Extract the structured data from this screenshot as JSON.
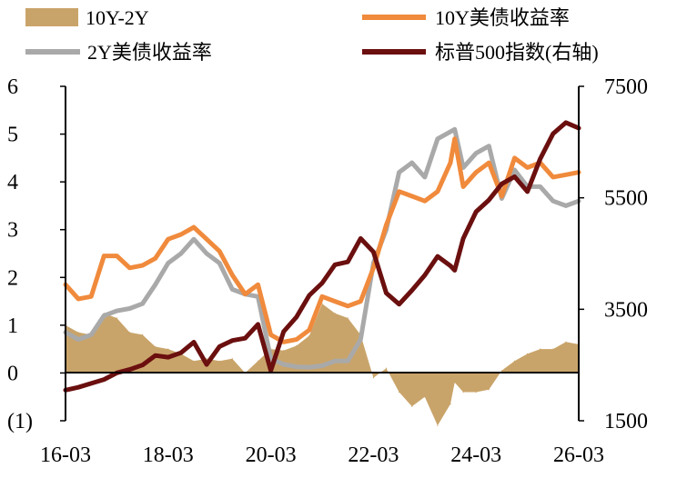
{
  "chart_data": {
    "type": "line",
    "title": "",
    "xlabel": "",
    "ylabel": "",
    "x_ticks": [
      "16-03",
      "18-03",
      "20-03",
      "22-03",
      "24-03",
      "26-03"
    ],
    "x_range": [
      "2016-03",
      "2026-03"
    ],
    "left_axis": {
      "ylim": [
        -1,
        6
      ],
      "ticks": [
        "(1)",
        "0",
        "1",
        "2",
        "3",
        "4",
        "5",
        "6"
      ],
      "tick_values": [
        -1,
        0,
        1,
        2,
        3,
        4,
        5,
        6
      ],
      "negative_tick_color": "#cc0000"
    },
    "right_axis": {
      "ylim": [
        1500,
        7500
      ],
      "ticks": [
        "1500",
        "3500",
        "5500",
        "7500"
      ],
      "tick_values": [
        1500,
        3500,
        5500,
        7500
      ]
    },
    "legend": {
      "placement": "top",
      "entries": [
        {
          "label": "10Y-2Y",
          "kind": "area",
          "color": "#c9a46a"
        },
        {
          "label": "10Y美债收益率",
          "kind": "line",
          "color": "#f08a3c"
        },
        {
          "label": "2Y美债收益率",
          "kind": "line",
          "color": "#a9a9a9"
        },
        {
          "label": "标普500指数(右轴)",
          "kind": "line",
          "color": "#6b0f0f"
        }
      ]
    },
    "series": [
      {
        "name": "10Y美债收益率",
        "axis": "left",
        "color": "#f08a3c",
        "x": [
          "2016-03",
          "2016-06",
          "2016-09",
          "2016-12",
          "2017-03",
          "2017-06",
          "2017-09",
          "2017-12",
          "2018-03",
          "2018-06",
          "2018-09",
          "2018-12",
          "2019-03",
          "2019-06",
          "2019-09",
          "2019-12",
          "2020-03",
          "2020-06",
          "2020-09",
          "2020-12",
          "2021-03",
          "2021-06",
          "2021-09",
          "2021-12",
          "2022-03",
          "2022-06",
          "2022-09",
          "2022-12",
          "2023-03",
          "2023-06",
          "2023-09",
          "2023-10",
          "2023-12",
          "2024-03",
          "2024-06",
          "2024-09",
          "2024-12",
          "2025-03",
          "2025-06",
          "2025-09",
          "2025-12",
          "2026-03"
        ],
        "values": [
          1.85,
          1.55,
          1.6,
          2.45,
          2.45,
          2.2,
          2.25,
          2.4,
          2.8,
          2.9,
          3.05,
          2.8,
          2.55,
          2.05,
          1.65,
          1.85,
          0.8,
          0.65,
          0.7,
          0.9,
          1.6,
          1.5,
          1.4,
          1.5,
          2.2,
          3.1,
          3.8,
          3.7,
          3.6,
          3.8,
          4.4,
          4.9,
          3.9,
          4.2,
          4.4,
          3.7,
          4.5,
          4.3,
          4.4,
          4.1,
          4.15,
          4.2
        ]
      },
      {
        "name": "2Y美债收益率",
        "axis": "left",
        "color": "#a9a9a9",
        "x": [
          "2016-03",
          "2016-06",
          "2016-09",
          "2016-12",
          "2017-03",
          "2017-06",
          "2017-09",
          "2017-12",
          "2018-03",
          "2018-06",
          "2018-09",
          "2018-12",
          "2019-03",
          "2019-06",
          "2019-09",
          "2019-12",
          "2020-03",
          "2020-06",
          "2020-09",
          "2020-12",
          "2021-03",
          "2021-06",
          "2021-09",
          "2021-12",
          "2022-03",
          "2022-06",
          "2022-09",
          "2022-12",
          "2023-03",
          "2023-06",
          "2023-09",
          "2023-10",
          "2023-12",
          "2024-03",
          "2024-06",
          "2024-09",
          "2024-12",
          "2025-03",
          "2025-06",
          "2025-09",
          "2025-12",
          "2026-03"
        ],
        "values": [
          0.85,
          0.7,
          0.8,
          1.2,
          1.3,
          1.35,
          1.45,
          1.85,
          2.3,
          2.5,
          2.8,
          2.5,
          2.3,
          1.75,
          1.65,
          1.6,
          0.3,
          0.18,
          0.13,
          0.12,
          0.15,
          0.25,
          0.25,
          0.7,
          2.3,
          3.0,
          4.2,
          4.4,
          4.1,
          4.9,
          5.05,
          5.1,
          4.3,
          4.6,
          4.75,
          3.65,
          4.25,
          3.9,
          3.9,
          3.6,
          3.5,
          3.6
        ]
      },
      {
        "name": "标普500指数(右轴)",
        "axis": "right",
        "color": "#6b0f0f",
        "x": [
          "2016-03",
          "2016-06",
          "2016-09",
          "2016-12",
          "2017-03",
          "2017-06",
          "2017-09",
          "2017-12",
          "2018-03",
          "2018-06",
          "2018-09",
          "2018-12",
          "2019-03",
          "2019-06",
          "2019-09",
          "2019-12",
          "2020-03",
          "2020-06",
          "2020-09",
          "2020-12",
          "2021-03",
          "2021-06",
          "2021-09",
          "2021-12",
          "2022-03",
          "2022-06",
          "2022-09",
          "2022-12",
          "2023-03",
          "2023-06",
          "2023-09",
          "2023-10",
          "2023-12",
          "2024-03",
          "2024-06",
          "2024-09",
          "2024-12",
          "2025-03",
          "2025-06",
          "2025-09",
          "2025-12",
          "2026-03"
        ],
        "values": [
          2050,
          2100,
          2170,
          2240,
          2360,
          2420,
          2500,
          2670,
          2640,
          2720,
          2910,
          2510,
          2830,
          2940,
          2980,
          3230,
          2400,
          3100,
          3360,
          3750,
          3970,
          4300,
          4350,
          4770,
          4530,
          3790,
          3590,
          3840,
          4110,
          4450,
          4280,
          4200,
          4770,
          5250,
          5460,
          5750,
          5880,
          5610,
          6200,
          6650,
          6850,
          6750
        ]
      },
      {
        "name": "10Y-2Y",
        "axis": "left",
        "kind": "area",
        "color": "#c9a46a",
        "x": [
          "2016-03",
          "2016-06",
          "2016-09",
          "2016-12",
          "2017-03",
          "2017-06",
          "2017-09",
          "2017-12",
          "2018-03",
          "2018-06",
          "2018-09",
          "2018-12",
          "2019-03",
          "2019-06",
          "2019-09",
          "2019-12",
          "2020-03",
          "2020-06",
          "2020-09",
          "2020-12",
          "2021-03",
          "2021-06",
          "2021-09",
          "2021-12",
          "2022-03",
          "2022-06",
          "2022-09",
          "2022-12",
          "2023-03",
          "2023-06",
          "2023-09",
          "2023-10",
          "2023-12",
          "2024-03",
          "2024-06",
          "2024-09",
          "2024-12",
          "2025-03",
          "2025-06",
          "2025-09",
          "2025-12",
          "2026-03"
        ],
        "values": [
          1.0,
          0.85,
          0.8,
          1.25,
          1.15,
          0.85,
          0.8,
          0.55,
          0.5,
          0.4,
          0.25,
          0.3,
          0.25,
          0.3,
          0.0,
          0.25,
          0.5,
          0.47,
          0.57,
          0.78,
          1.45,
          1.25,
          1.15,
          0.8,
          -0.1,
          0.1,
          -0.4,
          -0.7,
          -0.5,
          -1.1,
          -0.65,
          -0.2,
          -0.4,
          -0.4,
          -0.35,
          0.05,
          0.25,
          0.4,
          0.5,
          0.5,
          0.65,
          0.6
        ]
      }
    ]
  }
}
